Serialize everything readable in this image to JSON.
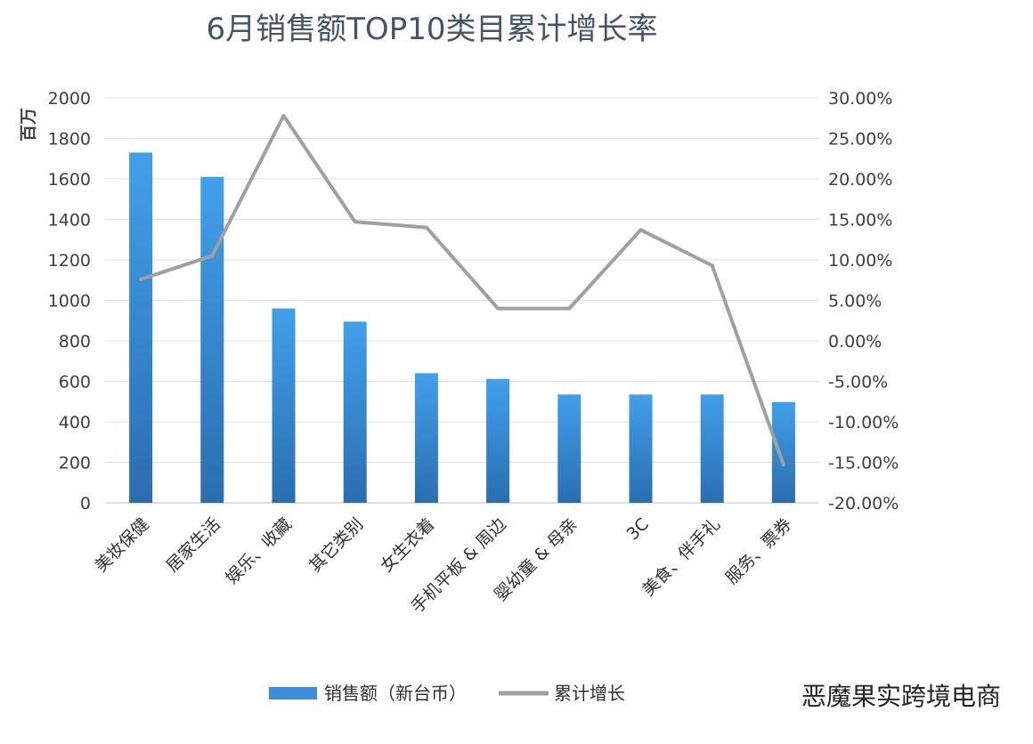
{
  "chart_data": {
    "type": "bar+line",
    "title": "6月销售额TOP10类目累计增长率",
    "ylabel": "百万",
    "categories": [
      "美妆保健",
      "居家生活",
      "娱乐、收藏",
      "其它类别",
      "女生衣着",
      "手机平板 & 周边",
      "婴幼童 & 母亲",
      "3C",
      "美食、伴手礼",
      "服务、票券"
    ],
    "series": [
      {
        "name": "销售额（新台币）",
        "type": "bar",
        "axis": "left",
        "color": "#3a8fd8",
        "values": [
          1730,
          1610,
          960,
          895,
          640,
          612,
          535,
          535,
          535,
          498
        ]
      },
      {
        "name": "累计增长",
        "type": "line",
        "axis": "right",
        "color": "#a0a0a0",
        "values": [
          7.6,
          10.5,
          27.8,
          14.7,
          14.0,
          4.0,
          4.0,
          13.7,
          9.3,
          -15.3
        ]
      }
    ],
    "ylim": [
      0,
      2000
    ],
    "yticks": [
      "0",
      "200",
      "400",
      "600",
      "800",
      "1000",
      "1200",
      "1400",
      "1600",
      "1800",
      "2000"
    ],
    "y2lim": [
      -20,
      30
    ],
    "y2ticks": [
      "-20.00%",
      "-15.00%",
      "-10.00%",
      "-5.00%",
      "0.00%",
      "5.00%",
      "10.00%",
      "15.00%",
      "20.00%",
      "25.00%",
      "30.00%"
    ],
    "grid": true,
    "legend": "bottom"
  },
  "watermark": "恶魔果实跨境电商"
}
